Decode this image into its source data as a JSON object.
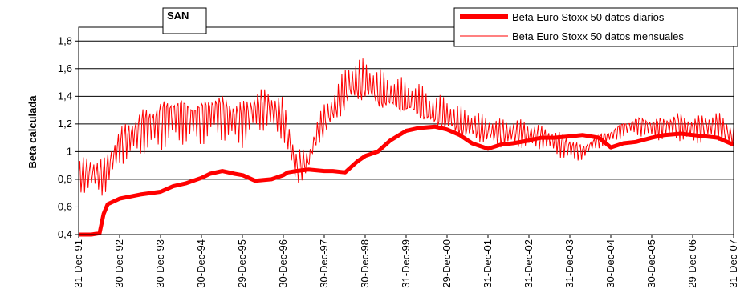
{
  "chart_data": {
    "type": "line",
    "title": "SAN",
    "ylabel": "Beta calculada",
    "xlabel": "",
    "ylim": [
      0.4,
      1.9
    ],
    "yticks": [
      "0,4",
      "0,6",
      "0,8",
      "1",
      "1,2",
      "1,4",
      "1,6",
      "1,8"
    ],
    "ytick_values": [
      0.4,
      0.6,
      0.8,
      1.0,
      1.2,
      1.4,
      1.6,
      1.8
    ],
    "x_tick_labels": [
      "31-Dec-91",
      "30-Dec-92",
      "30-Dec-93",
      "30-Dec-94",
      "29-Dec-95",
      "30-Dec-96",
      "30-Dec-97",
      "30-Dec-98",
      "31-Dec-99",
      "29-Dec-00",
      "31-Dec-01",
      "31-Dec-02",
      "31-Dec-03",
      "30-Dec-04",
      "30-Dec-05",
      "29-Dec-06",
      "31-Dec-07"
    ],
    "x_tick_years": [
      1991.99,
      1992.99,
      1993.99,
      1994.99,
      1995.99,
      1996.99,
      1997.99,
      1998.99,
      1999.99,
      2000.99,
      2001.99,
      2002.99,
      2003.99,
      2004.99,
      2005.99,
      2006.99,
      2007.99
    ],
    "xlim": [
      1991.99,
      2007.99
    ],
    "grid": "horizontal",
    "legend_position": "top-right",
    "series": [
      {
        "name": "Beta Euro Stoxx 50 datos diarios",
        "color": "#ff0000",
        "style": "thick",
        "x": [
          1991.99,
          1992.3,
          1992.5,
          1992.6,
          1992.7,
          1992.99,
          1993.5,
          1993.99,
          1994.3,
          1994.6,
          1994.99,
          1995.2,
          1995.5,
          1995.8,
          1996.0,
          1996.3,
          1996.7,
          1996.99,
          1997.1,
          1997.3,
          1997.6,
          1997.99,
          1998.2,
          1998.5,
          1998.8,
          1999.0,
          1999.3,
          1999.6,
          1999.99,
          2000.3,
          2000.7,
          2000.99,
          2001.3,
          2001.6,
          2001.99,
          2002.3,
          2002.6,
          2002.99,
          2003.1,
          2003.3,
          2003.6,
          2003.99,
          2004.3,
          2004.7,
          2004.99,
          2005.3,
          2005.6,
          2005.99,
          2006.3,
          2006.7,
          2006.99,
          2007.3,
          2007.6,
          2007.99
        ],
        "y": [
          0.4,
          0.4,
          0.41,
          0.55,
          0.62,
          0.66,
          0.69,
          0.71,
          0.75,
          0.77,
          0.81,
          0.84,
          0.86,
          0.84,
          0.83,
          0.79,
          0.8,
          0.83,
          0.85,
          0.86,
          0.87,
          0.86,
          0.86,
          0.85,
          0.93,
          0.97,
          1.0,
          1.08,
          1.15,
          1.17,
          1.18,
          1.16,
          1.12,
          1.06,
          1.02,
          1.05,
          1.06,
          1.08,
          1.09,
          1.1,
          1.1,
          1.11,
          1.12,
          1.1,
          1.03,
          1.06,
          1.07,
          1.1,
          1.12,
          1.13,
          1.12,
          1.11,
          1.1,
          1.05
        ]
      },
      {
        "name": "Beta Euro Stoxx 50 datos mensuales",
        "color": "#ff0000",
        "style": "thin",
        "x": [
          1991.99,
          1992.3,
          1992.6,
          1992.99,
          1993.3,
          1993.6,
          1993.99,
          1994.3,
          1994.6,
          1994.99,
          1995.3,
          1995.6,
          1995.99,
          1996.3,
          1996.6,
          1996.99,
          1997.1,
          1997.3,
          1997.6,
          1997.8,
          1997.99,
          1998.3,
          1998.6,
          1998.99,
          1999.3,
          1999.6,
          1999.99,
          2000.3,
          2000.6,
          2000.99,
          2001.3,
          2001.6,
          2001.99,
          2002.3,
          2002.6,
          2002.99,
          2003.3,
          2003.6,
          2003.99,
          2004.3,
          2004.6,
          2004.99,
          2005.3,
          2005.6,
          2005.99,
          2006.3,
          2006.6,
          2006.99,
          2007.3,
          2007.6,
          2007.99
        ],
        "y": [
          0.82,
          0.85,
          0.82,
          1.05,
          1.12,
          1.18,
          1.22,
          1.27,
          1.25,
          1.24,
          1.3,
          1.26,
          1.22,
          1.31,
          1.32,
          1.24,
          1.12,
          0.88,
          0.93,
          1.12,
          1.22,
          1.34,
          1.48,
          1.5,
          1.43,
          1.4,
          1.37,
          1.34,
          1.28,
          1.25,
          1.2,
          1.18,
          1.15,
          1.13,
          1.14,
          1.12,
          1.11,
          1.08,
          1.03,
          1.0,
          1.07,
          1.12,
          1.17,
          1.2,
          1.18,
          1.18,
          1.2,
          1.16,
          1.18,
          1.19,
          1.1
        ],
        "amplitude": [
          0.15,
          0.15,
          0.16,
          0.16,
          0.18,
          0.2,
          0.22,
          0.22,
          0.2,
          0.2,
          0.2,
          0.2,
          0.2,
          0.18,
          0.18,
          0.18,
          0.16,
          0.18,
          0.08,
          0.12,
          0.14,
          0.16,
          0.2,
          0.18,
          0.18,
          0.16,
          0.16,
          0.16,
          0.15,
          0.15,
          0.14,
          0.13,
          0.12,
          0.12,
          0.12,
          0.12,
          0.1,
          0.1,
          0.12,
          0.06,
          0.06,
          0.06,
          0.07,
          0.08,
          0.1,
          0.1,
          0.12,
          0.12,
          0.12,
          0.12,
          0.12
        ]
      }
    ]
  }
}
